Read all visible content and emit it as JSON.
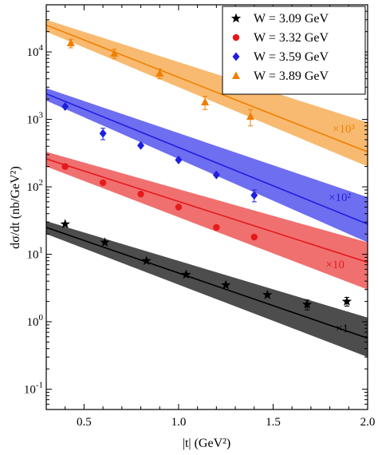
{
  "chart_data": {
    "type": "scatter",
    "xlabel": "|t| (GeV²)",
    "ylabel": "dσ/dt (nb/GeV²)",
    "xlim": [
      0.3,
      2.0
    ],
    "ylim": [
      0.05,
      50000
    ],
    "yscale": "log",
    "x_ticks": [
      0.5,
      1.0,
      1.5,
      2.0
    ],
    "x_tick_labels": [
      "0.5",
      "1.0",
      "1.5",
      "2.0"
    ],
    "y_ticks": [
      0.1,
      1,
      10,
      100,
      1000,
      10000
    ],
    "y_tick_labels": [
      {
        "base": "10",
        "exp": "-1"
      },
      {
        "base": "10",
        "exp": "0"
      },
      {
        "base": "10",
        "exp": "1"
      },
      {
        "base": "10",
        "exp": "2"
      },
      {
        "base": "10",
        "exp": "3"
      },
      {
        "base": "10",
        "exp": "4"
      }
    ],
    "legend_position": "top-right",
    "series": [
      {
        "name": "W = 3.09 GeV",
        "marker": "star",
        "color": "#000000",
        "band_color": "#4d4d4d",
        "scale_label": "×1",
        "x": [
          0.4,
          0.61,
          0.83,
          1.04,
          1.25,
          1.47,
          1.68,
          1.89
        ],
        "y": [
          28,
          15,
          8,
          5,
          3.5,
          2.5,
          1.8,
          2.0
        ],
        "err": [
          0,
          0,
          0,
          0,
          0,
          0,
          0.3,
          0.3
        ],
        "fit": {
          "y_at_xmin": 25,
          "y_at_xmax": 0.57
        },
        "band": {
          "upper_at_xmin": 31,
          "upper_at_xmax": 1.15,
          "lower_at_xmin": 20,
          "lower_at_xmax": 0.3
        }
      },
      {
        "name": "W = 3.32 GeV",
        "marker": "circle",
        "color": "#e41a1c",
        "band_color": "#f07070",
        "scale_label": "×10",
        "x": [
          0.4,
          0.6,
          0.8,
          1.0,
          1.2,
          1.4
        ],
        "y": [
          200,
          115,
          78,
          50,
          25,
          18
        ],
        "err": [
          0,
          0,
          0,
          0,
          0,
          0
        ],
        "fit": {
          "y_at_xmin": 260,
          "y_at_xmax": 7.6
        },
        "band": {
          "upper_at_xmin": 330,
          "upper_at_xmax": 15,
          "lower_at_xmin": 200,
          "lower_at_xmax": 3
        }
      },
      {
        "name": "W = 3.59 GeV",
        "marker": "diamond",
        "color": "#1f1fe0",
        "band_color": "#6e6ef0",
        "scale_label": "×10²",
        "x": [
          0.4,
          0.6,
          0.8,
          1.0,
          1.2,
          1.4
        ],
        "y": [
          1550,
          620,
          410,
          250,
          150,
          75
        ],
        "err": [
          0,
          120,
          0,
          0,
          0,
          15
        ],
        "fit": {
          "y_at_xmin": 2400,
          "y_at_xmax": 28
        },
        "band": {
          "upper_at_xmin": 2900,
          "upper_at_xmax": 70,
          "lower_at_xmin": 1900,
          "lower_at_xmax": 15
        }
      },
      {
        "name": "W = 3.89 GeV",
        "marker": "triangle",
        "color": "#f07f00",
        "band_color": "#f8ba70",
        "scale_label": "×10³",
        "x": [
          0.43,
          0.66,
          0.9,
          1.14,
          1.38
        ],
        "y": [
          13500,
          9500,
          4800,
          1800,
          1100
        ],
        "err": [
          2000,
          1500,
          800,
          400,
          300
        ],
        "fit": {
          "y_at_xmin": 25000,
          "y_at_xmax": 330
        },
        "band": {
          "upper_at_xmin": 30000,
          "upper_at_xmax": 900,
          "lower_at_xmin": 20000,
          "lower_at_xmax": 200
        }
      }
    ]
  }
}
